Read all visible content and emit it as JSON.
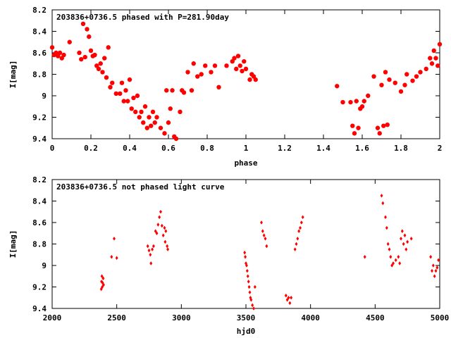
{
  "colors": {
    "marker": "#ff0000",
    "axis": "#000000",
    "background": "#ffffff"
  },
  "chart_data": [
    {
      "type": "scatter",
      "title": "203836+0736.5 phased with P=281.90day",
      "xlabel": "phase",
      "ylabel": "I[mag]",
      "xlim": [
        0,
        2
      ],
      "ylim": [
        9.4,
        8.2
      ],
      "y_inverted": true,
      "x_ticks": [
        "0",
        "0.2",
        "0.4",
        "0.6",
        "0.8",
        "1",
        "1.2",
        "1.4",
        "1.6",
        "1.8",
        "2"
      ],
      "y_ticks": [
        "8.2",
        "8.4",
        "8.6",
        "8.8",
        "9",
        "9.2",
        "9.4"
      ],
      "x_tick_values": [
        0,
        0.2,
        0.4,
        0.6,
        0.8,
        1.0,
        1.2,
        1.4,
        1.6,
        1.8,
        2.0
      ],
      "y_tick_values": [
        8.2,
        8.4,
        8.6,
        8.8,
        9.0,
        9.2,
        9.4
      ],
      "grid": false,
      "legend": "none",
      "marker": "filled-circle",
      "points": [
        [
          0.0,
          8.55
        ],
        [
          0.01,
          8.62
        ],
        [
          0.02,
          8.6
        ],
        [
          0.03,
          8.63
        ],
        [
          0.04,
          8.6
        ],
        [
          0.05,
          8.65
        ],
        [
          0.06,
          8.62
        ],
        [
          0.09,
          8.5
        ],
        [
          0.14,
          8.6
        ],
        [
          0.15,
          8.66
        ],
        [
          0.16,
          8.33
        ],
        [
          0.17,
          8.64
        ],
        [
          0.18,
          8.38
        ],
        [
          0.19,
          8.45
        ],
        [
          0.2,
          8.58
        ],
        [
          0.21,
          8.63
        ],
        [
          0.22,
          8.62
        ],
        [
          0.23,
          8.72
        ],
        [
          0.24,
          8.75
        ],
        [
          0.25,
          8.7
        ],
        [
          0.26,
          8.78
        ],
        [
          0.27,
          8.65
        ],
        [
          0.28,
          8.83
        ],
        [
          0.29,
          8.55
        ],
        [
          0.3,
          8.92
        ],
        [
          0.31,
          8.88
        ],
        [
          0.33,
          8.98
        ],
        [
          0.35,
          8.98
        ],
        [
          0.36,
          8.88
        ],
        [
          0.37,
          9.05
        ],
        [
          0.38,
          8.95
        ],
        [
          0.39,
          9.05
        ],
        [
          0.4,
          8.85
        ],
        [
          0.41,
          9.12
        ],
        [
          0.42,
          9.02
        ],
        [
          0.43,
          9.15
        ],
        [
          0.44,
          9.0
        ],
        [
          0.45,
          9.2
        ],
        [
          0.46,
          9.15
        ],
        [
          0.47,
          9.25
        ],
        [
          0.48,
          9.1
        ],
        [
          0.49,
          9.3
        ],
        [
          0.5,
          9.2
        ],
        [
          0.51,
          9.28
        ],
        [
          0.52,
          9.15
        ],
        [
          0.53,
          9.25
        ],
        [
          0.54,
          9.2
        ],
        [
          0.56,
          9.3
        ],
        [
          0.58,
          9.35
        ],
        [
          0.59,
          8.95
        ],
        [
          0.6,
          9.25
        ],
        [
          0.61,
          9.12
        ],
        [
          0.62,
          8.95
        ],
        [
          0.63,
          9.38
        ],
        [
          0.64,
          9.4
        ],
        [
          0.66,
          9.15
        ],
        [
          0.67,
          8.95
        ],
        [
          0.68,
          8.97
        ],
        [
          0.7,
          8.78
        ],
        [
          0.72,
          8.95
        ],
        [
          0.73,
          8.7
        ],
        [
          0.75,
          8.82
        ],
        [
          0.77,
          8.8
        ],
        [
          0.79,
          8.72
        ],
        [
          0.82,
          8.78
        ],
        [
          0.84,
          8.72
        ],
        [
          0.86,
          8.92
        ],
        [
          0.9,
          8.72
        ],
        [
          0.93,
          8.68
        ],
        [
          0.94,
          8.65
        ],
        [
          0.95,
          8.75
        ],
        [
          0.96,
          8.63
        ],
        [
          0.97,
          8.72
        ],
        [
          0.98,
          8.77
        ],
        [
          0.99,
          8.68
        ],
        [
          1.0,
          8.75
        ],
        [
          1.02,
          8.85
        ],
        [
          1.03,
          8.8
        ],
        [
          1.04,
          8.82
        ],
        [
          1.05,
          8.85
        ],
        [
          1.47,
          8.91
        ],
        [
          1.5,
          9.06
        ],
        [
          1.54,
          9.06
        ],
        [
          1.55,
          9.28
        ],
        [
          1.56,
          9.35
        ],
        [
          1.57,
          9.05
        ],
        [
          1.58,
          9.3
        ],
        [
          1.59,
          9.12
        ],
        [
          1.6,
          9.1
        ],
        [
          1.61,
          9.05
        ],
        [
          1.63,
          9.0
        ],
        [
          1.66,
          8.82
        ],
        [
          1.68,
          9.3
        ],
        [
          1.69,
          9.35
        ],
        [
          1.7,
          8.9
        ],
        [
          1.71,
          9.28
        ],
        [
          1.72,
          8.78
        ],
        [
          1.73,
          9.27
        ],
        [
          1.74,
          8.85
        ],
        [
          1.77,
          8.88
        ],
        [
          1.8,
          8.96
        ],
        [
          1.82,
          8.9
        ],
        [
          1.83,
          8.8
        ],
        [
          1.86,
          8.86
        ],
        [
          1.88,
          8.82
        ],
        [
          1.9,
          8.78
        ],
        [
          1.93,
          8.75
        ],
        [
          1.95,
          8.65
        ],
        [
          1.96,
          8.7
        ],
        [
          1.97,
          8.58
        ],
        [
          1.98,
          8.65
        ],
        [
          1.99,
          8.72
        ],
        [
          2.0,
          8.52
        ]
      ]
    },
    {
      "type": "scatter",
      "title": "203836+0736.5 not phased light curve",
      "xlabel": "hjd0",
      "ylabel": "I[mag]",
      "xlim": [
        2000,
        5000
      ],
      "ylim": [
        9.4,
        8.2
      ],
      "y_inverted": true,
      "x_ticks": [
        "2000",
        "2500",
        "3000",
        "3500",
        "4000",
        "4500",
        "5000"
      ],
      "y_ticks": [
        "8.2",
        "8.4",
        "8.6",
        "8.8",
        "9",
        "9.2",
        "9.4"
      ],
      "x_tick_values": [
        2000,
        2500,
        3000,
        3500,
        4000,
        4500,
        5000
      ],
      "y_tick_values": [
        8.2,
        8.4,
        8.6,
        8.8,
        9.0,
        9.2,
        9.4
      ],
      "grid": false,
      "legend": "none",
      "marker": "small-diamond",
      "points": [
        [
          2380,
          9.22
        ],
        [
          2382,
          9.15
        ],
        [
          2385,
          9.1
        ],
        [
          2388,
          9.2
        ],
        [
          2390,
          9.16
        ],
        [
          2395,
          9.12
        ],
        [
          2398,
          9.18
        ],
        [
          2460,
          8.92
        ],
        [
          2480,
          8.75
        ],
        [
          2500,
          8.93
        ],
        [
          2740,
          8.82
        ],
        [
          2750,
          8.86
        ],
        [
          2760,
          8.9
        ],
        [
          2765,
          8.98
        ],
        [
          2775,
          8.85
        ],
        [
          2785,
          8.82
        ],
        [
          2800,
          8.68
        ],
        [
          2810,
          8.7
        ],
        [
          2820,
          8.62
        ],
        [
          2830,
          8.55
        ],
        [
          2840,
          8.5
        ],
        [
          2850,
          8.63
        ],
        [
          2860,
          8.72
        ],
        [
          2870,
          8.65
        ],
        [
          2875,
          8.78
        ],
        [
          2880,
          8.68
        ],
        [
          2890,
          8.82
        ],
        [
          2895,
          8.85
        ],
        [
          3490,
          8.88
        ],
        [
          3495,
          8.92
        ],
        [
          3500,
          8.98
        ],
        [
          3505,
          9.0
        ],
        [
          3510,
          9.05
        ],
        [
          3515,
          9.1
        ],
        [
          3520,
          9.15
        ],
        [
          3525,
          9.2
        ],
        [
          3530,
          9.25
        ],
        [
          3535,
          9.3
        ],
        [
          3540,
          9.32
        ],
        [
          3550,
          9.37
        ],
        [
          3560,
          9.4
        ],
        [
          3570,
          9.2
        ],
        [
          3620,
          8.6
        ],
        [
          3630,
          8.68
        ],
        [
          3640,
          8.72
        ],
        [
          3650,
          8.75
        ],
        [
          3660,
          8.82
        ],
        [
          3810,
          9.28
        ],
        [
          3820,
          9.32
        ],
        [
          3830,
          9.3
        ],
        [
          3840,
          9.35
        ],
        [
          3850,
          9.3
        ],
        [
          3880,
          8.85
        ],
        [
          3890,
          8.8
        ],
        [
          3900,
          8.75
        ],
        [
          3910,
          8.68
        ],
        [
          3920,
          8.65
        ],
        [
          3930,
          8.6
        ],
        [
          3940,
          8.55
        ],
        [
          4420,
          8.92
        ],
        [
          4550,
          8.35
        ],
        [
          4560,
          8.42
        ],
        [
          4580,
          8.55
        ],
        [
          4590,
          8.65
        ],
        [
          4600,
          8.8
        ],
        [
          4610,
          8.85
        ],
        [
          4620,
          8.92
        ],
        [
          4630,
          9.0
        ],
        [
          4640,
          8.98
        ],
        [
          4660,
          8.95
        ],
        [
          4680,
          8.92
        ],
        [
          4690,
          8.98
        ],
        [
          4700,
          8.75
        ],
        [
          4710,
          8.68
        ],
        [
          4720,
          8.8
        ],
        [
          4730,
          8.72
        ],
        [
          4740,
          8.85
        ],
        [
          4750,
          8.78
        ],
        [
          4780,
          8.75
        ],
        [
          4930,
          8.92
        ],
        [
          4940,
          9.05
        ],
        [
          4950,
          9.0
        ],
        [
          4960,
          9.1
        ],
        [
          4970,
          9.05
        ],
        [
          4980,
          9.02
        ],
        [
          4990,
          8.95
        ]
      ]
    }
  ]
}
